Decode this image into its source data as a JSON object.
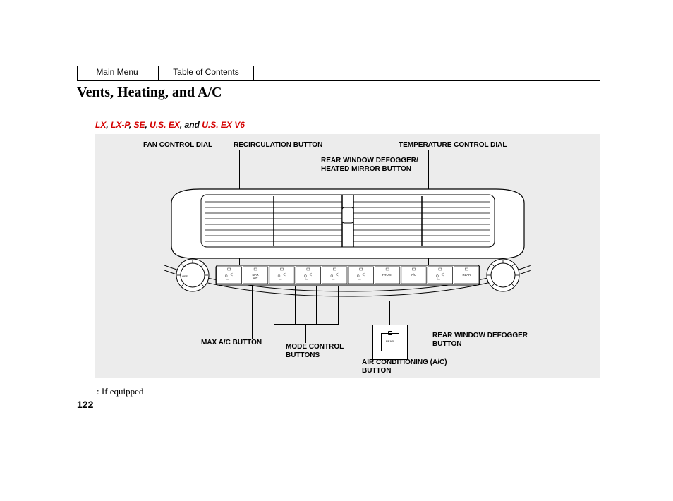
{
  "nav": {
    "main": "Main Menu",
    "toc": "Table of Contents"
  },
  "title": "Vents, Heating, and A/C",
  "trims": {
    "parts": [
      {
        "t": "LX",
        "red": true
      },
      {
        "t": ", ",
        "red": false
      },
      {
        "t": "LX-P",
        "red": true
      },
      {
        "t": ", ",
        "red": false
      },
      {
        "t": "SE",
        "red": true
      },
      {
        "t": ", ",
        "red": false
      },
      {
        "t": "U.S. EX",
        "red": true
      },
      {
        "t": ", and ",
        "red": false
      },
      {
        "t": "U.S. EX V6",
        "red": true
      }
    ]
  },
  "labels": {
    "top": {
      "fan": "FAN CONTROL DIAL",
      "recirc": "RECIRCULATION BUTTON",
      "temp": "TEMPERATURE CONTROL DIAL",
      "defog_mirror": "REAR WINDOW DEFOGGER/\nHEATED MIRROR BUTTON"
    },
    "bottom": {
      "maxac": "MAX A/C BUTTON",
      "mode": "MODE CONTROL\nBUTTONS",
      "ac": "AIR CONDITIONING (A/C)\nBUTTON",
      "rear_defog": "REAR WINDOW DEFOGGER\nBUTTON"
    }
  },
  "button_row": {
    "count": 10,
    "captions": [
      "",
      "MAX\nA/C",
      "",
      "",
      "",
      "",
      "FRONT",
      "A/C",
      "",
      "REAR"
    ]
  },
  "inset_text": "REAR",
  "footnote": ": If equipped",
  "page_number": "122",
  "colors": {
    "fig_bg": "#ececec",
    "red": "#d40000"
  }
}
